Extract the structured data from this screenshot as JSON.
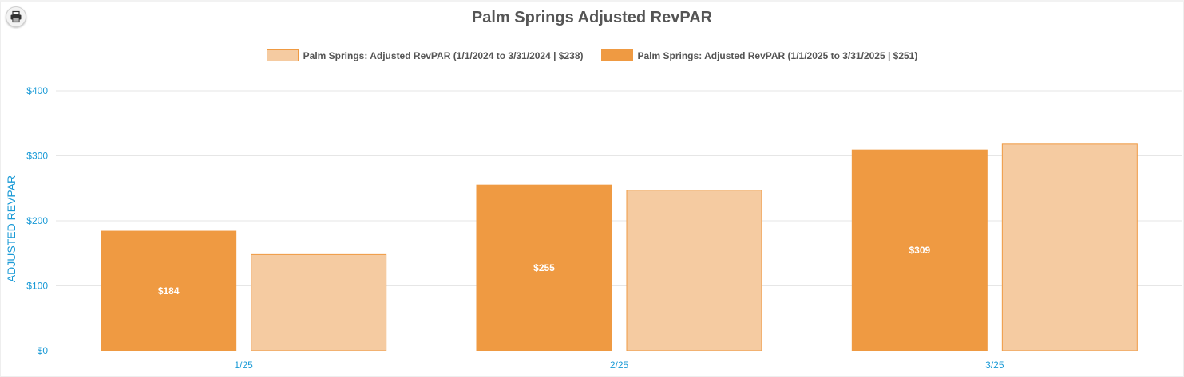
{
  "header": {
    "title": "Palm Springs Adjusted RevPAR",
    "print_icon": "printer-icon"
  },
  "colors": {
    "series_2025": "#ef9a42",
    "series_2024": "#f5cba1",
    "bar_border": "#ef9a42",
    "axis_text": "#1a9ad6",
    "grid": "#e6e6e6"
  },
  "chart_data": {
    "type": "bar",
    "title": "Palm Springs Adjusted RevPAR",
    "ylabel": "ADJUSTED REVPAR",
    "xlabel": "",
    "ylim": [
      0,
      400
    ],
    "yticks": [
      "$0",
      "$100",
      "$200",
      "$300",
      "$400"
    ],
    "grid": true,
    "legend_position": "top-center",
    "categories": [
      "1/25",
      "2/25",
      "3/25"
    ],
    "series": [
      {
        "name": "Palm Springs: Adjusted RevPAR (1/1/2025 to 3/31/2025 | $251)",
        "values": [
          184,
          255,
          309
        ],
        "labels": [
          "$184",
          "$255",
          "$309"
        ],
        "color": "#ef9a42"
      },
      {
        "name": "Palm Springs: Adjusted RevPAR (1/1/2024 to 3/31/2024 | $238)",
        "values": [
          148,
          247,
          318
        ],
        "labels": [
          null,
          null,
          null
        ],
        "color": "#f5cba1"
      }
    ],
    "legend_order": [
      1,
      0
    ]
  }
}
